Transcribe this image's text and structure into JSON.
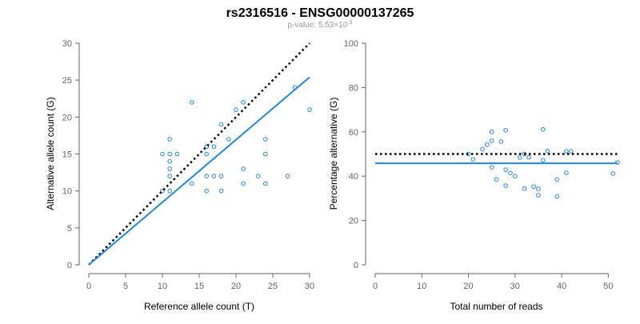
{
  "figure": {
    "title": "rs2316516 - ENSG00000137265",
    "subtitle": {
      "prefix": "p-value: 5.53×10",
      "exponent": "-3"
    }
  },
  "colors": {
    "points": "#1e88e5",
    "fit": "#1e88e5",
    "reference": "#000000"
  },
  "chart_data": [
    {
      "type": "scatter",
      "title": "",
      "xlabel": "Reference allele count (T)",
      "ylabel": "Alternative allele count (G)",
      "xlim": [
        0,
        30
      ],
      "ylim": [
        0,
        30
      ],
      "xticks": [
        0,
        5,
        10,
        15,
        20,
        25,
        30
      ],
      "yticks": [
        0,
        5,
        10,
        15,
        20,
        25,
        30
      ],
      "grid": false,
      "points": {
        "x": [
          10,
          10,
          11,
          11,
          11,
          11,
          11,
          11,
          12,
          14,
          14,
          16,
          16,
          16,
          16,
          16,
          17,
          17,
          18,
          18,
          18,
          19,
          20,
          21,
          21,
          21,
          23,
          24,
          24,
          24,
          27,
          28,
          30
        ],
        "y": [
          10,
          15,
          10,
          12,
          13,
          14,
          15,
          17,
          15,
          11,
          22,
          10,
          12,
          15,
          16,
          16,
          12,
          16,
          10,
          12,
          19,
          17,
          21,
          11,
          13,
          22,
          12,
          11,
          15,
          17,
          12,
          24,
          21
        ]
      },
      "lines": [
        {
          "kind": "reference",
          "style": "dotted",
          "x": [
            0,
            30
          ],
          "y": [
            0,
            30
          ]
        },
        {
          "kind": "fit",
          "style": "solid",
          "x": [
            0,
            30
          ],
          "y": [
            0,
            25.4
          ]
        }
      ]
    },
    {
      "type": "scatter",
      "title": "",
      "xlabel": "Total number of reads",
      "ylabel": "Percentage alternative (G)",
      "xlim": [
        0,
        52
      ],
      "ylim": [
        0,
        100
      ],
      "xticks": [
        0,
        10,
        20,
        30,
        40,
        50
      ],
      "yticks": [
        0,
        20,
        40,
        60,
        80,
        100
      ],
      "grid": false,
      "points": {
        "x": [
          20,
          21,
          23,
          24,
          25,
          25,
          25,
          26,
          27,
          28,
          28,
          28,
          29,
          30,
          31,
          32,
          32,
          33,
          34,
          35,
          35,
          36,
          36,
          37,
          39,
          39,
          41,
          41,
          42,
          51,
          52
        ],
        "y": [
          50,
          47.6,
          52.2,
          54.2,
          60,
          44,
          56,
          38.5,
          55.6,
          60.7,
          42.9,
          35.7,
          41.4,
          40,
          48.4,
          34.4,
          50,
          48.5,
          35.3,
          31.4,
          34.3,
          61.1,
          47.2,
          51.4,
          30.8,
          38.5,
          51.2,
          41.5,
          51.2,
          41.2,
          46.2
        ]
      },
      "lines": [
        {
          "kind": "reference",
          "style": "dotted",
          "x": [
            0,
            52
          ],
          "y": [
            50,
            50
          ]
        },
        {
          "kind": "fit",
          "style": "solid",
          "x": [
            0,
            52
          ],
          "y": [
            45.8,
            45.8
          ]
        }
      ]
    }
  ]
}
